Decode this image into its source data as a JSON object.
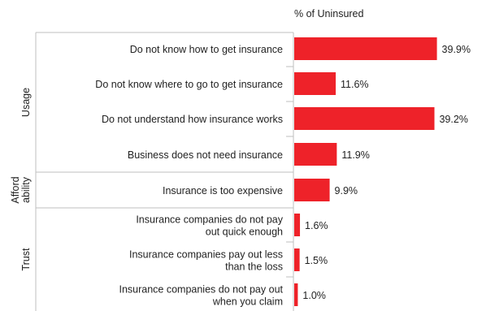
{
  "chart_data": {
    "type": "bar",
    "orientation": "horizontal",
    "value_header": "% of Uninsured",
    "categories": [
      [
        "Do not know how to get insurance"
      ],
      [
        "Do not know where to go to get insurance"
      ],
      [
        "Do not understand how insurance works"
      ],
      [
        "Business does not need insurance"
      ],
      [
        "Insurance is too expensive"
      ],
      [
        "Insurance companies do not pay",
        "out quick enough"
      ],
      [
        "Insurance companies pay out less",
        "than the loss"
      ],
      [
        "Insurance companies do not pay out",
        "when you claim"
      ]
    ],
    "values": [
      39.9,
      11.6,
      39.2,
      11.9,
      9.9,
      1.6,
      1.5,
      1.0
    ],
    "value_labels": [
      "39.9%",
      "11.6%",
      "39.2%",
      "11.9%",
      "9.9%",
      "1.6%",
      "1.5%",
      "1.0%"
    ],
    "groups": [
      {
        "label": [
          "Usage"
        ],
        "start": 0,
        "end": 3
      },
      {
        "label": [
          "Afford",
          "ability"
        ],
        "start": 4,
        "end": 4
      },
      {
        "label": [
          "Trust"
        ],
        "start": 5,
        "end": 7
      }
    ],
    "xlim": [
      0,
      40
    ],
    "bar_color": "#ee2229",
    "grid": false
  }
}
